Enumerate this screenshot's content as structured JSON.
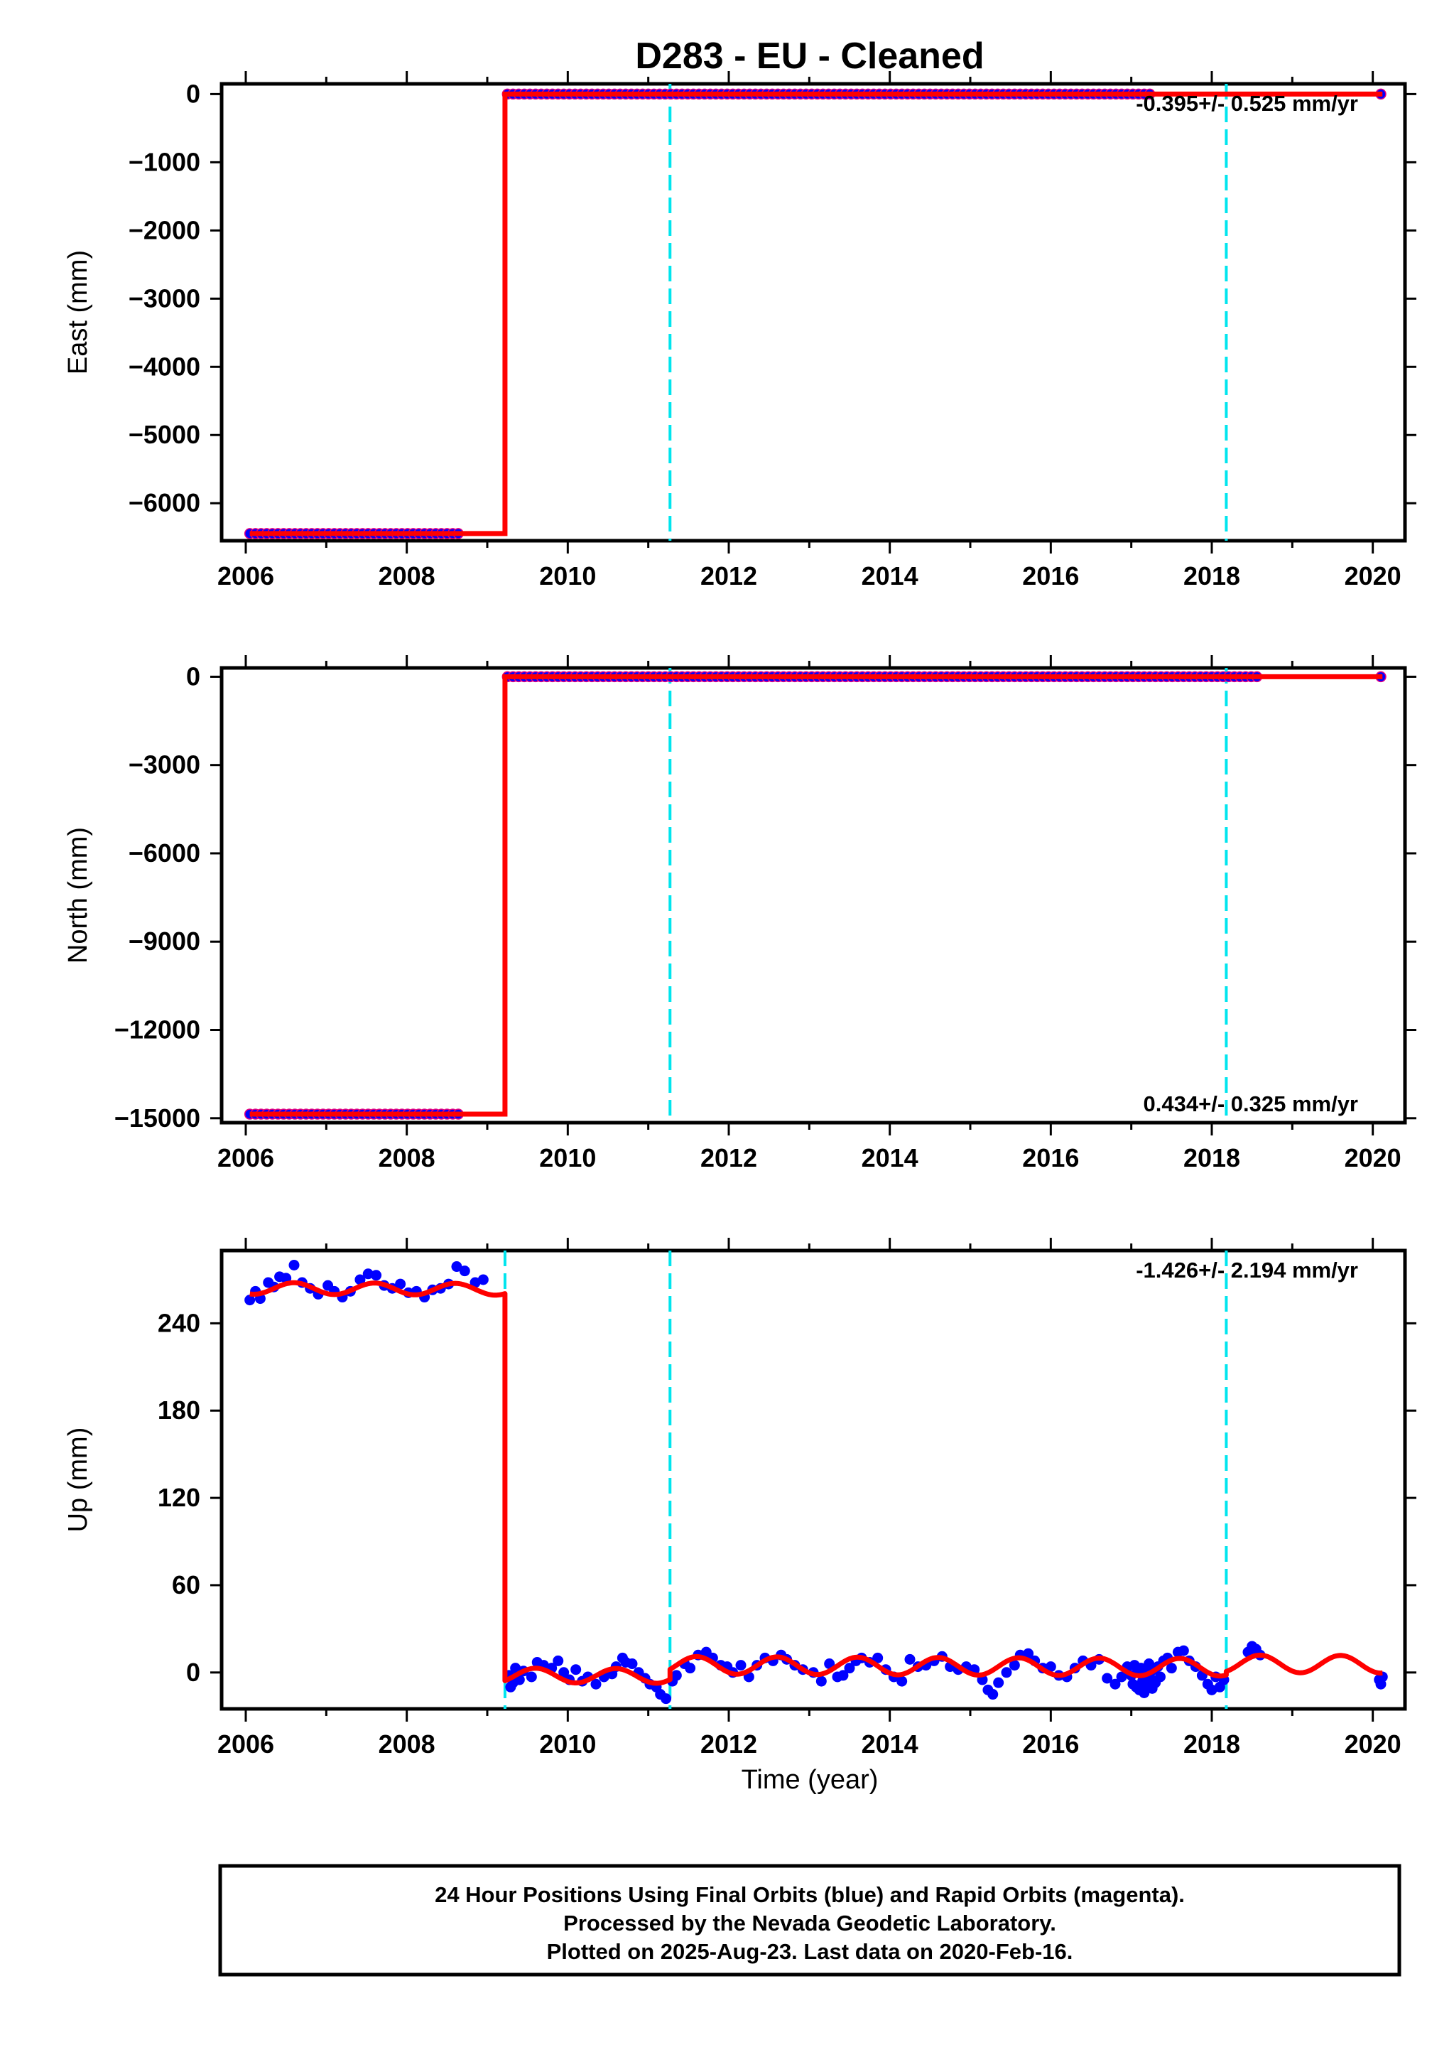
{
  "figure": {
    "title": "D283  - EU - Cleaned",
    "xlabel": "Time (year)",
    "footer_lines": [
      "24 Hour Positions Using Final Orbits (blue) and Rapid Orbits (magenta).",
      "Processed by the Nevada Geodetic Laboratory.",
      "Plotted on 2025-Aug-23. Last data on 2020-Feb-16."
    ]
  },
  "colors": {
    "final_orbit_points": "#0000ff",
    "rapid_orbit_points": "#e6007e",
    "model_fit": "#ff0000",
    "equipment_change": "#00e5ee",
    "axes": "#000000"
  },
  "chart_data": [
    {
      "type": "scatter",
      "component": "east",
      "ylabel": "East (mm)",
      "xlim": [
        2005.7,
        2020.4
      ],
      "ylim": [
        -6550,
        150
      ],
      "xticks": [
        2006,
        2008,
        2010,
        2012,
        2014,
        2016,
        2018,
        2020
      ],
      "xtick_labels": [
        "2006",
        "2008",
        "2010",
        "2012",
        "2014",
        "2016",
        "2018",
        "2020"
      ],
      "yticks": [
        0,
        -1000,
        -2000,
        -3000,
        -4000,
        -5000,
        -6000
      ],
      "ytick_labels": [
        "0",
        "−1000",
        "−2000",
        "−3000",
        "−4000",
        "−5000",
        "−6000"
      ],
      "rate_label": "-0.395+/- 0.525 mm/yr",
      "rate_position": "top-right",
      "grid": false,
      "equipment_changes": [
        2011.27,
        2018.18
      ],
      "offset_epoch": 2009.22,
      "points_before": {
        "x_start": 2006.05,
        "x_end": 2008.7,
        "y": -6445,
        "marker_color": "#0000ff",
        "edge_color": "#e6007e"
      },
      "points_after": {
        "x_start": 2009.25,
        "x_end": 2017.25,
        "y": 0,
        "marker_color": "#0000ff",
        "edge_color": "#e6007e"
      },
      "points_extra": [
        {
          "x": 2020.1,
          "y": 0
        }
      ],
      "model": {
        "x": [
          2006.05,
          2009.22,
          2009.22,
          2020.12
        ],
        "y": [
          -6445,
          -6445,
          0,
          0
        ]
      }
    },
    {
      "type": "scatter",
      "component": "north",
      "ylabel": "North (mm)",
      "xlim": [
        2005.7,
        2020.4
      ],
      "ylim": [
        -15150,
        300
      ],
      "xticks": [
        2006,
        2008,
        2010,
        2012,
        2014,
        2016,
        2018,
        2020
      ],
      "xtick_labels": [
        "2006",
        "2008",
        "2010",
        "2012",
        "2014",
        "2016",
        "2018",
        "2020"
      ],
      "yticks": [
        0,
        -3000,
        -6000,
        -9000,
        -12000,
        -15000
      ],
      "ytick_labels": [
        "0",
        "−3000",
        "−6000",
        "−9000",
        "−12000",
        "−15000"
      ],
      "rate_label": "0.434+/- 0.325 mm/yr",
      "rate_position": "bottom-right",
      "grid": false,
      "equipment_changes": [
        2011.27,
        2018.18
      ],
      "offset_epoch": 2009.22,
      "points_before": {
        "x_start": 2006.05,
        "x_end": 2008.7,
        "y": -14860,
        "marker_color": "#0000ff",
        "edge_color": "#e6007e"
      },
      "points_after": {
        "x_start": 2009.25,
        "x_end": 2018.6,
        "y": 0,
        "marker_color": "#0000ff",
        "edge_color": "#e6007e"
      },
      "points_extra": [
        {
          "x": 2020.1,
          "y": 0
        }
      ],
      "model": {
        "x": [
          2006.05,
          2009.22,
          2009.22,
          2020.12
        ],
        "y": [
          -14860,
          -14860,
          0,
          0
        ]
      }
    },
    {
      "type": "scatter",
      "component": "up",
      "ylabel": "Up (mm)",
      "xlim": [
        2005.7,
        2020.4
      ],
      "ylim": [
        -25,
        290
      ],
      "xticks": [
        2006,
        2008,
        2010,
        2012,
        2014,
        2016,
        2018,
        2020
      ],
      "xtick_labels": [
        "2006",
        "2008",
        "2010",
        "2012",
        "2014",
        "2016",
        "2018",
        "2020"
      ],
      "yticks": [
        0,
        60,
        120,
        180,
        240
      ],
      "ytick_labels": [
        "0",
        "60",
        "120",
        "180",
        "240"
      ],
      "rate_label": "-1.426+/- 2.194 mm/yr",
      "rate_position": "top-right",
      "grid": false,
      "equipment_changes": [
        2009.22,
        2011.27,
        2018.18
      ],
      "offset_epoch": 2009.22,
      "points": [
        [
          2006.05,
          256
        ],
        [
          2006.12,
          262
        ],
        [
          2006.18,
          257
        ],
        [
          2006.28,
          268
        ],
        [
          2006.35,
          265
        ],
        [
          2006.42,
          272
        ],
        [
          2006.5,
          271
        ],
        [
          2006.6,
          280
        ],
        [
          2006.7,
          268
        ],
        [
          2006.8,
          264
        ],
        [
          2006.9,
          260
        ],
        [
          2007.02,
          266
        ],
        [
          2007.1,
          262
        ],
        [
          2007.2,
          258
        ],
        [
          2007.3,
          262
        ],
        [
          2007.42,
          270
        ],
        [
          2007.52,
          274
        ],
        [
          2007.62,
          273
        ],
        [
          2007.72,
          266
        ],
        [
          2007.82,
          264
        ],
        [
          2007.92,
          267
        ],
        [
          2008.02,
          261
        ],
        [
          2008.12,
          262
        ],
        [
          2008.22,
          258
        ],
        [
          2008.32,
          263
        ],
        [
          2008.42,
          264
        ],
        [
          2008.52,
          267
        ],
        [
          2008.62,
          279
        ],
        [
          2008.72,
          276
        ],
        [
          2008.85,
          268
        ],
        [
          2008.95,
          270
        ],
        [
          2009.27,
          -2
        ],
        [
          2009.29,
          -10
        ],
        [
          2009.32,
          -7
        ],
        [
          2009.35,
          3
        ],
        [
          2009.4,
          -5
        ],
        [
          2009.45,
          1
        ],
        [
          2009.55,
          -3
        ],
        [
          2009.62,
          7
        ],
        [
          2009.7,
          5
        ],
        [
          2009.8,
          3
        ],
        [
          2009.88,
          8
        ],
        [
          2009.95,
          0
        ],
        [
          2010.02,
          -5
        ],
        [
          2010.1,
          2
        ],
        [
          2010.18,
          -6
        ],
        [
          2010.25,
          -3
        ],
        [
          2010.35,
          -8
        ],
        [
          2010.45,
          -3
        ],
        [
          2010.55,
          -1
        ],
        [
          2010.6,
          4
        ],
        [
          2010.68,
          10
        ],
        [
          2010.72,
          7
        ],
        [
          2010.8,
          6
        ],
        [
          2010.88,
          0
        ],
        [
          2010.96,
          -4
        ],
        [
          2011.02,
          -8
        ],
        [
          2011.1,
          -10
        ],
        [
          2011.15,
          -15
        ],
        [
          2011.22,
          -18
        ],
        [
          2011.3,
          -6
        ],
        [
          2011.35,
          -2
        ],
        [
          2011.45,
          6
        ],
        [
          2011.52,
          3
        ],
        [
          2011.62,
          12
        ],
        [
          2011.72,
          14
        ],
        [
          2011.8,
          10
        ],
        [
          2011.9,
          5
        ],
        [
          2011.98,
          4
        ],
        [
          2012.05,
          0
        ],
        [
          2012.15,
          5
        ],
        [
          2012.25,
          -3
        ],
        [
          2012.35,
          5
        ],
        [
          2012.45,
          10
        ],
        [
          2012.55,
          8
        ],
        [
          2012.65,
          12
        ],
        [
          2012.72,
          9
        ],
        [
          2012.82,
          5
        ],
        [
          2012.92,
          2
        ],
        [
          2013.05,
          0
        ],
        [
          2013.15,
          -6
        ],
        [
          2013.25,
          6
        ],
        [
          2013.35,
          -3
        ],
        [
          2013.42,
          -2
        ],
        [
          2013.5,
          3
        ],
        [
          2013.58,
          8
        ],
        [
          2013.65,
          10
        ],
        [
          2013.75,
          7
        ],
        [
          2013.85,
          10
        ],
        [
          2013.95,
          2
        ],
        [
          2014.05,
          -3
        ],
        [
          2014.15,
          -6
        ],
        [
          2014.25,
          9
        ],
        [
          2014.35,
          4
        ],
        [
          2014.45,
          5
        ],
        [
          2014.55,
          8
        ],
        [
          2014.65,
          11
        ],
        [
          2014.75,
          4
        ],
        [
          2014.85,
          2
        ],
        [
          2014.95,
          4
        ],
        [
          2015.05,
          2
        ],
        [
          2015.15,
          -5
        ],
        [
          2015.22,
          -12
        ],
        [
          2015.28,
          -15
        ],
        [
          2015.35,
          -7
        ],
        [
          2015.45,
          0
        ],
        [
          2015.55,
          5
        ],
        [
          2015.62,
          12
        ],
        [
          2015.72,
          13
        ],
        [
          2015.8,
          8
        ],
        [
          2015.9,
          3
        ],
        [
          2016.0,
          4
        ],
        [
          2016.1,
          -2
        ],
        [
          2016.2,
          -3
        ],
        [
          2016.3,
          3
        ],
        [
          2016.4,
          8
        ],
        [
          2016.5,
          5
        ],
        [
          2016.6,
          9
        ],
        [
          2016.7,
          -4
        ],
        [
          2016.8,
          -8
        ],
        [
          2016.88,
          -3
        ],
        [
          2016.95,
          4
        ],
        [
          2017.0,
          -2
        ],
        [
          2017.02,
          -8
        ],
        [
          2017.04,
          5
        ],
        [
          2017.06,
          -10
        ],
        [
          2017.08,
          0
        ],
        [
          2017.1,
          -12
        ],
        [
          2017.12,
          3
        ],
        [
          2017.14,
          -6
        ],
        [
          2017.16,
          -14
        ],
        [
          2017.18,
          1
        ],
        [
          2017.2,
          -9
        ],
        [
          2017.22,
          6
        ],
        [
          2017.24,
          -4
        ],
        [
          2017.26,
          -11
        ],
        [
          2017.28,
          2
        ],
        [
          2017.3,
          -7
        ],
        [
          2017.33,
          4
        ],
        [
          2017.36,
          -3
        ],
        [
          2017.4,
          8
        ],
        [
          2017.45,
          10
        ],
        [
          2017.5,
          3
        ],
        [
          2017.58,
          14
        ],
        [
          2017.65,
          15
        ],
        [
          2017.72,
          8
        ],
        [
          2017.8,
          4
        ],
        [
          2017.88,
          -2
        ],
        [
          2017.95,
          -8
        ],
        [
          2018.0,
          -12
        ],
        [
          2018.05,
          -3
        ],
        [
          2018.1,
          -10
        ],
        [
          2018.15,
          -5
        ],
        [
          2018.45,
          14
        ],
        [
          2018.5,
          18
        ],
        [
          2018.55,
          16
        ],
        [
          2018.6,
          12
        ],
        [
          2020.08,
          -5
        ],
        [
          2020.1,
          -8
        ],
        [
          2020.12,
          -3
        ]
      ],
      "model": {
        "segments": [
          {
            "x_start": 2006.05,
            "x_end": 2009.22,
            "mean": 264,
            "amplitude": 4,
            "trend_per_year": -1.4
          },
          {
            "x_start": 2009.22,
            "x_end": 2011.27,
            "mean": -2,
            "amplitude": 5,
            "trend_per_year": -1.4
          },
          {
            "x_start": 2011.27,
            "x_end": 2018.18,
            "mean": 5,
            "amplitude": 6,
            "trend_per_year": -1.4
          },
          {
            "x_start": 2018.18,
            "x_end": 2020.12,
            "mean": 6,
            "amplitude": 6,
            "trend_per_year": -1.4
          }
        ]
      }
    }
  ]
}
